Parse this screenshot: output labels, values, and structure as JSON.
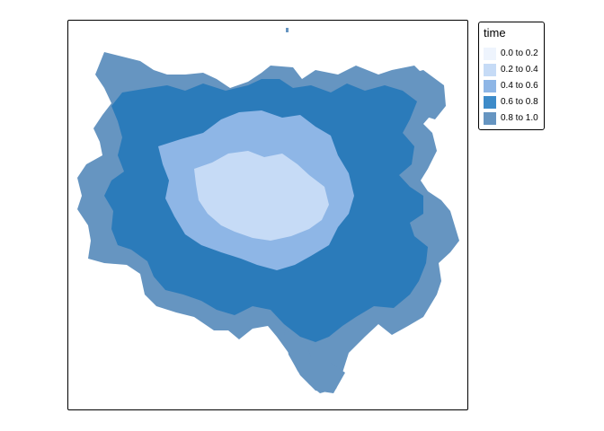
{
  "map": {
    "legend_title": "time",
    "classes": [
      {
        "label": "0.0 to 0.2",
        "color": "#eef4fd"
      },
      {
        "label": "0.2 to 0.4",
        "color": "#c6dbf6"
      },
      {
        "label": "0.4 to 0.6",
        "color": "#8eb6e6"
      },
      {
        "label": "0.6 to 0.8",
        "color": "#3d8bc9"
      },
      {
        "label": "0.8 to 1.0",
        "color": "#6695c1"
      }
    ],
    "core_color": "#2b7bba",
    "legend_position": "top-right outside map frame",
    "frame": "rounded border"
  }
}
